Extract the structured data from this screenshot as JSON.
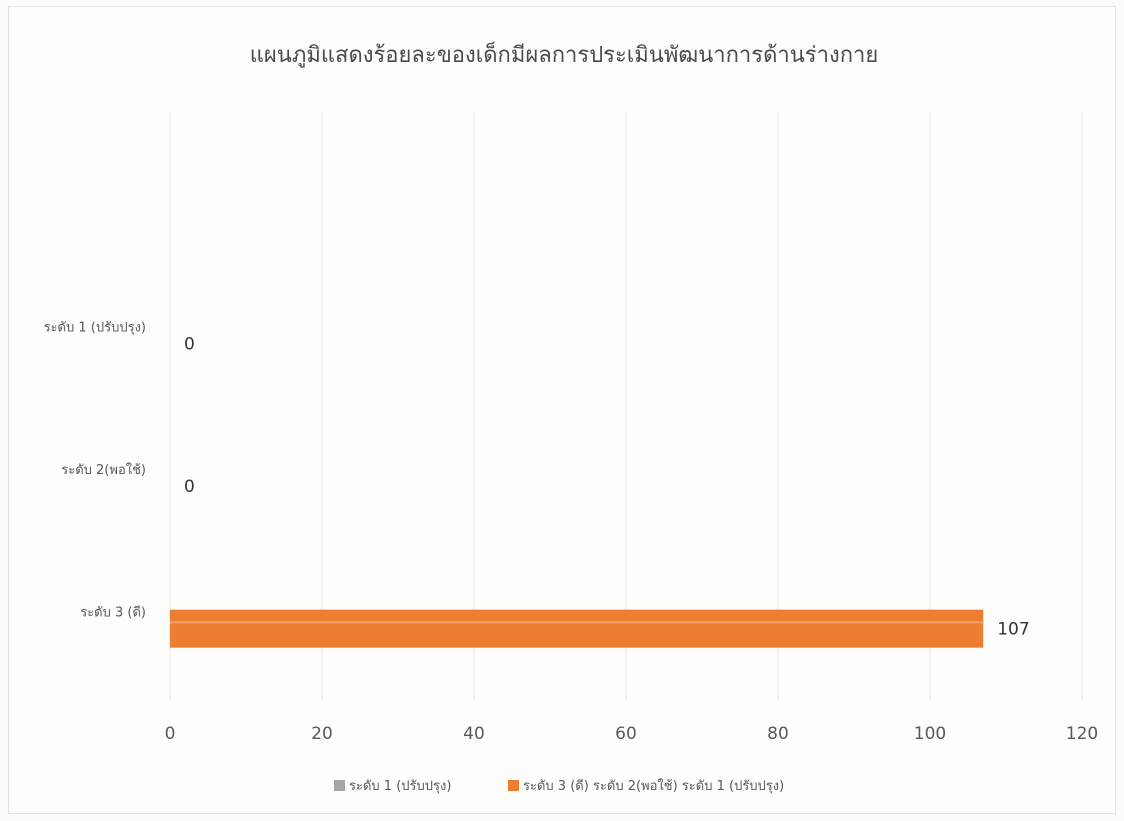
{
  "chart_data": {
    "type": "bar",
    "orientation": "horizontal",
    "title": "แผนภูมิแสดงร้อยละของเด็กมีผลการประเมินพัฒนาการด้านร่างกาย",
    "categories": [
      "ระดับ 1 (ปรับปรุง)",
      "ระดับ 2(พอใช้)",
      "ระดับ 3 (ดี)"
    ],
    "values": [
      0,
      0,
      107
    ],
    "data_labels": [
      "0",
      "0",
      "107"
    ],
    "xlim": [
      0,
      120
    ],
    "x_ticks": [
      "0",
      "20",
      "40",
      "60",
      "80",
      "100",
      "120"
    ],
    "grid": true,
    "legend_position": "bottom",
    "legend": [
      {
        "label": "ระดับ 1 (ปรับปรุง)",
        "color": "#a6a6a6"
      },
      {
        "label": "ระดับ 3 (ดี) ระดับ 2(พอใช้) ระดับ 1 (ปรับปรุง)",
        "color": "#ed7d31"
      }
    ],
    "bar_color": "#ed7d31"
  }
}
